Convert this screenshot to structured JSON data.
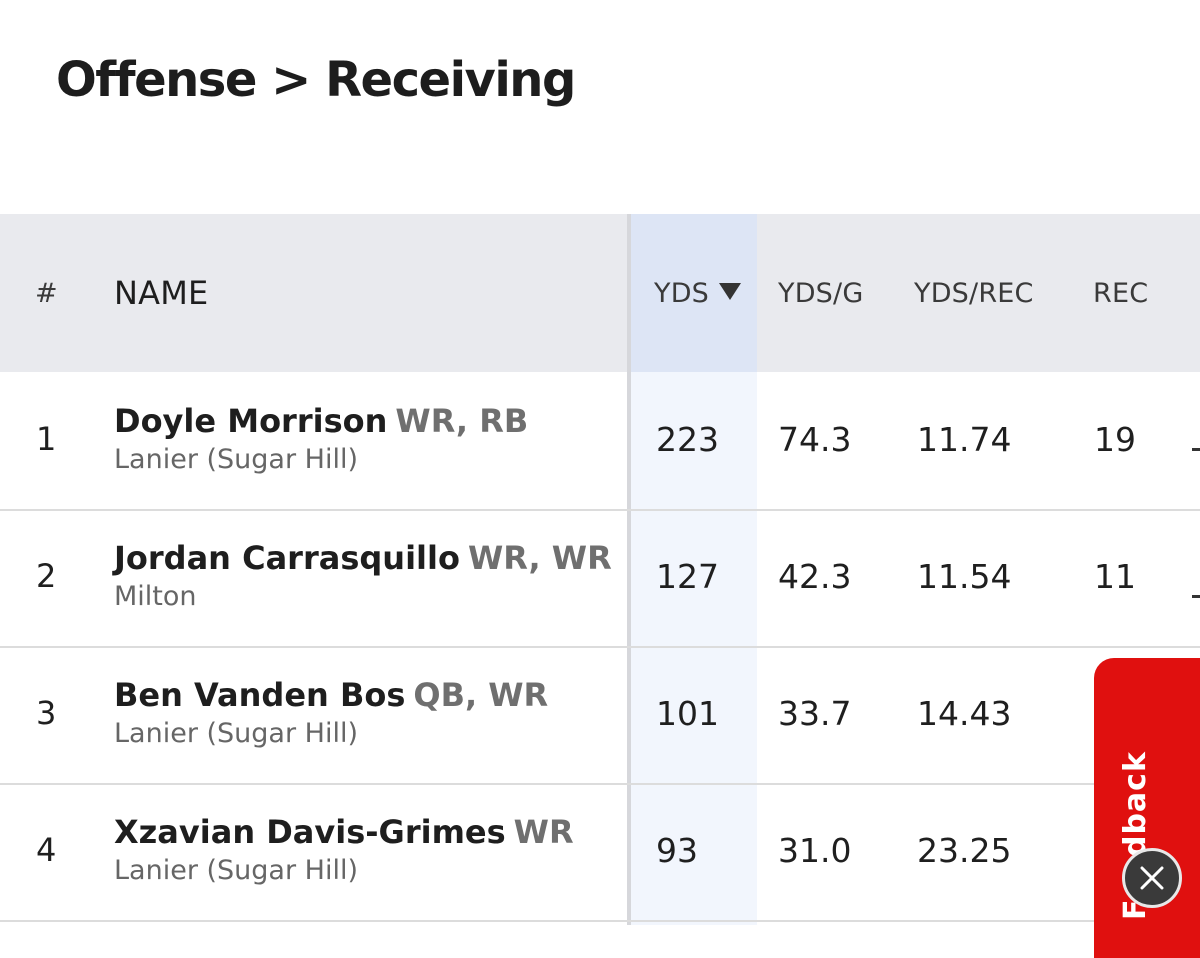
{
  "page": {
    "title": "Offense > Receiving"
  },
  "table": {
    "columns": {
      "rank": "#",
      "name": "NAME",
      "yds": "YDS",
      "yds_per_game": "YDS/G",
      "yds_per_rec": "YDS/REC",
      "rec": "REC"
    },
    "sorted_column": "YDS",
    "sort_direction": "descending",
    "rows": [
      {
        "rank": "1",
        "name": "Doyle Morrison",
        "positions": "WR, RB",
        "school": "Lanier (Sugar Hill)",
        "yds": "223",
        "yds_per_game": "74.3",
        "yds_per_rec": "11.74",
        "rec": "19"
      },
      {
        "rank": "2",
        "name": "Jordan Carrasquillo",
        "positions": "WR, WR",
        "school": "Milton",
        "yds": "127",
        "yds_per_game": "42.3",
        "yds_per_rec": "11.54",
        "rec": "11"
      },
      {
        "rank": "3",
        "name": "Ben Vanden Bos",
        "positions": "QB, WR",
        "school": "Lanier (Sugar Hill)",
        "yds": "101",
        "yds_per_game": "33.7",
        "yds_per_rec": "14.43",
        "rec": ""
      },
      {
        "rank": "4",
        "name": "Xzavian Davis-Grimes",
        "positions": "WR",
        "school": "Lanier (Sugar Hill)",
        "yds": "93",
        "yds_per_game": "31.0",
        "yds_per_rec": "23.25",
        "rec": ""
      }
    ]
  },
  "feedback": {
    "label": "Feedback",
    "color": "#e0100f"
  },
  "icons": {
    "sort": "caret-down-icon",
    "close": "close-icon"
  }
}
